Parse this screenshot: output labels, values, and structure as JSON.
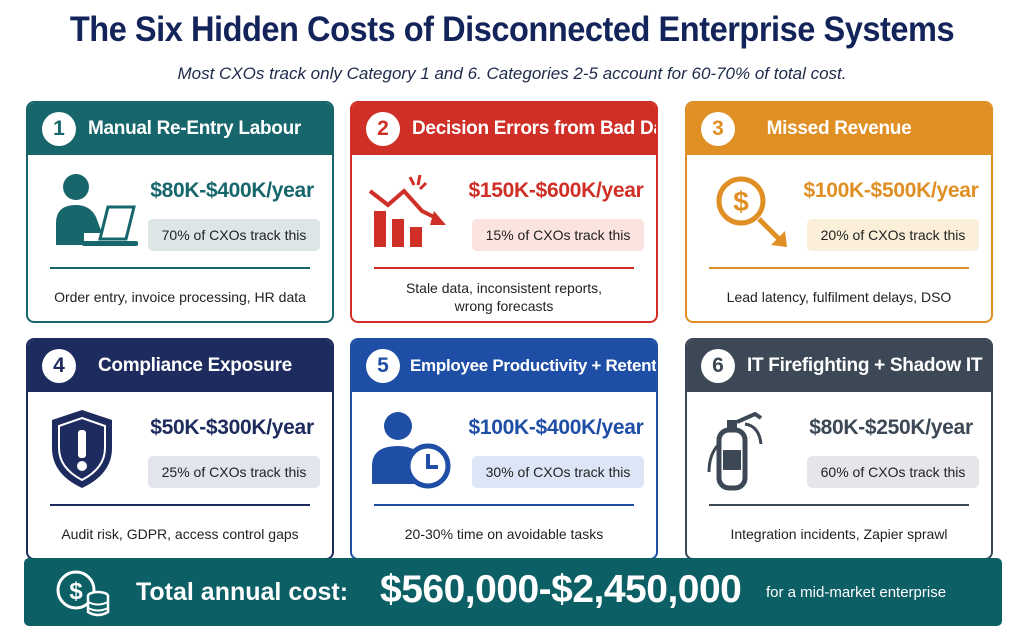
{
  "title": "The Six Hidden Costs of Disconnected Enterprise Systems",
  "subtitle": "Most CXOs track only Category 1 and 6. Categories 2-5 account for 60-70% of total cost.",
  "cards": [
    {
      "number": "1",
      "title": "Manual Re-Entry Labour",
      "amount": "$80K-$400K/year",
      "tracking": "70% of CXOs track this",
      "tracking_pct": 70,
      "description": "Order entry, invoice processing, HR data",
      "icon": "person-at-laptop-icon",
      "color": "#17666c"
    },
    {
      "number": "2",
      "title": "Decision Errors from Bad Data",
      "amount": "$150K-$600K/year",
      "tracking": "15% of CXOs track this",
      "tracking_pct": 15,
      "description": "Stale data, inconsistent reports, wrong forecasts",
      "icon": "declining-bar-chart-icon",
      "color": "#cf2f26"
    },
    {
      "number": "3",
      "title": "Missed Revenue",
      "amount": "$100K-$500K/year",
      "tracking": "20% of CXOs track this",
      "tracking_pct": 20,
      "description": "Lead latency, fulfilment delays, DSO",
      "icon": "dollar-down-arrow-icon",
      "color": "#e08f24"
    },
    {
      "number": "4",
      "title": "Compliance Exposure",
      "amount": "$50K-$300K/year",
      "tracking": "25% of CXOs track this",
      "tracking_pct": 25,
      "description": "Audit risk, GDPR, access control gaps",
      "icon": "shield-exclamation-icon",
      "color": "#1d2b5e"
    },
    {
      "number": "5",
      "title": "Employee Productivity + Retention",
      "amount": "$100K-$400K/year",
      "tracking": "30% of CXOs track this",
      "tracking_pct": 30,
      "description": "20-30% time on avoidable tasks",
      "icon": "person-clock-icon",
      "color": "#1f4ea6"
    },
    {
      "number": "6",
      "title": "IT Firefighting + Shadow IT",
      "amount": "$80K-$250K/year",
      "tracking": "60% of CXOs track this",
      "tracking_pct": 60,
      "description": "Integration incidents, Zapier sprawl",
      "icon": "fire-extinguisher-icon",
      "color": "#3c4855"
    }
  ],
  "total": {
    "label": "Total annual cost:",
    "value": "$560,000-$2,450,000",
    "note": "for a mid-market enterprise",
    "icon": "dollar-coins-icon",
    "color": "#0d5f66"
  }
}
